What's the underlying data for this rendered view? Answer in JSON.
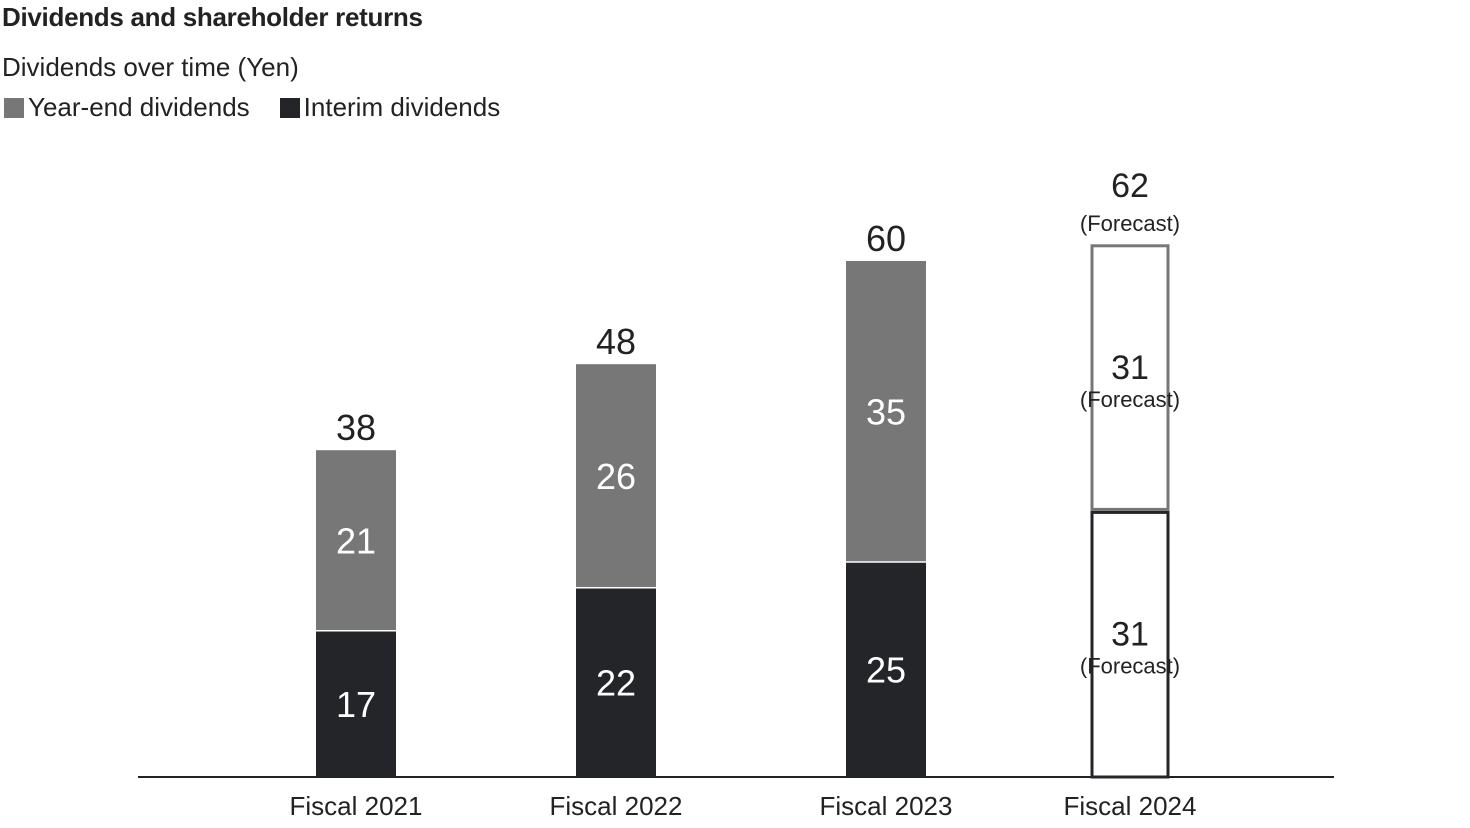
{
  "header": {
    "title": "Dividends and shareholder returns",
    "subtitle": "Dividends over time (Yen)"
  },
  "legend": {
    "items": [
      {
        "label": "Year-end dividends",
        "color": "#777777"
      },
      {
        "label": "Interim dividends",
        "color": "#232528"
      }
    ]
  },
  "chart_data": {
    "type": "bar",
    "stacked": true,
    "categories": [
      "Fiscal 2021",
      "Fiscal 2022",
      "Fiscal 2023",
      "Fiscal 2024"
    ],
    "series": [
      {
        "name": "Interim dividends",
        "values": [
          17,
          22,
          25,
          31
        ],
        "color": "#232528"
      },
      {
        "name": "Year-end dividends",
        "values": [
          21,
          26,
          35,
          31
        ],
        "color": "#777777"
      }
    ],
    "totals": [
      38,
      48,
      60,
      62
    ],
    "forecast": [
      false,
      false,
      false,
      true
    ],
    "forecast_label": "(Forecast)",
    "title": "Dividends over time (Yen)",
    "xlabel": "",
    "ylabel": "",
    "ylim": [
      0,
      62
    ],
    "grid": false,
    "legend_position": "top-left"
  }
}
